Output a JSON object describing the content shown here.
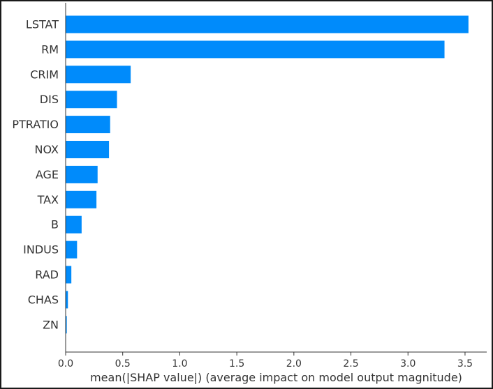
{
  "chart_data": {
    "type": "bar",
    "orientation": "horizontal",
    "categories": [
      "LSTAT",
      "RM",
      "CRIM",
      "DIS",
      "PTRATIO",
      "NOX",
      "AGE",
      "TAX",
      "B",
      "INDUS",
      "RAD",
      "CHAS",
      "ZN"
    ],
    "values": [
      3.53,
      3.32,
      0.57,
      0.45,
      0.39,
      0.38,
      0.28,
      0.27,
      0.14,
      0.1,
      0.05,
      0.02,
      0.01
    ],
    "xlabel": "mean(|SHAP value|) (average impact on model output magnitude)",
    "xticks": [
      "0.0",
      "0.5",
      "1.0",
      "1.5",
      "2.0",
      "2.5",
      "3.0",
      "3.5"
    ],
    "xtick_values": [
      0,
      0.5,
      1.0,
      1.5,
      2.0,
      2.5,
      3.0,
      3.5
    ],
    "xlim": [
      0,
      3.69
    ],
    "grid": false,
    "legend": "none",
    "colors": {
      "bar": "#008bfb",
      "text": "#333333",
      "axis": "#333333"
    }
  }
}
